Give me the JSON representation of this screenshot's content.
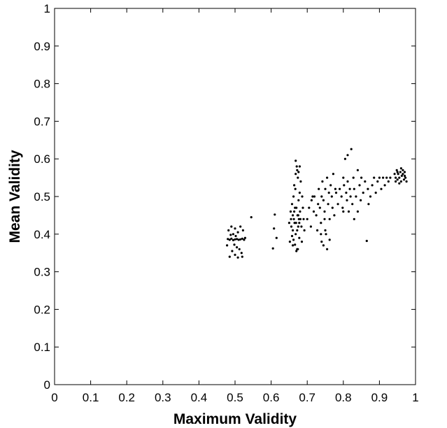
{
  "chart_data": {
    "type": "scatter",
    "xlabel": "Maximum Validity",
    "ylabel": "Mean Validity",
    "xlim": [
      0,
      1
    ],
    "ylim": [
      0,
      1
    ],
    "x_ticks": [
      "0",
      "0.1",
      "0.2",
      "0.3",
      "0.4",
      "0.5",
      "0.6",
      "0.7",
      "0.8",
      "0.9",
      "1"
    ],
    "y_ticks": [
      "0",
      "0.1",
      "0.2",
      "0.3",
      "0.4",
      "0.5",
      "0.6",
      "0.7",
      "0.8",
      "0.9",
      "1"
    ],
    "grid": false,
    "marker_color": "#000000",
    "series": [
      {
        "points": [
          [
            0.48,
            0.387
          ],
          [
            0.485,
            0.385
          ],
          [
            0.49,
            0.388
          ],
          [
            0.495,
            0.384
          ],
          [
            0.5,
            0.386
          ],
          [
            0.505,
            0.387
          ],
          [
            0.51,
            0.385
          ],
          [
            0.515,
            0.386
          ],
          [
            0.52,
            0.388
          ],
          [
            0.525,
            0.385
          ],
          [
            0.482,
            0.41
          ],
          [
            0.49,
            0.42
          ],
          [
            0.5,
            0.415
          ],
          [
            0.508,
            0.405
          ],
          [
            0.515,
            0.42
          ],
          [
            0.522,
            0.41
          ],
          [
            0.488,
            0.398
          ],
          [
            0.498,
            0.372
          ],
          [
            0.505,
            0.365
          ],
          [
            0.512,
            0.36
          ],
          [
            0.492,
            0.355
          ],
          [
            0.5,
            0.345
          ],
          [
            0.508,
            0.338
          ],
          [
            0.485,
            0.34
          ],
          [
            0.518,
            0.35
          ],
          [
            0.495,
            0.4
          ],
          [
            0.528,
            0.39
          ],
          [
            0.478,
            0.37
          ],
          [
            0.52,
            0.34
          ],
          [
            0.502,
            0.395
          ],
          [
            0.545,
            0.445
          ],
          [
            0.605,
            0.362
          ],
          [
            0.608,
            0.415
          ],
          [
            0.61,
            0.452
          ],
          [
            0.615,
            0.39
          ],
          [
            0.652,
            0.38
          ],
          [
            0.655,
            0.44
          ],
          [
            0.658,
            0.48
          ],
          [
            0.66,
            0.41
          ],
          [
            0.662,
            0.5
          ],
          [
            0.664,
            0.46
          ],
          [
            0.665,
            0.43
          ],
          [
            0.667,
            0.52
          ],
          [
            0.668,
            0.4
          ],
          [
            0.67,
            0.47
          ],
          [
            0.671,
            0.58
          ],
          [
            0.672,
            0.36
          ],
          [
            0.673,
            0.45
          ],
          [
            0.674,
            0.55
          ],
          [
            0.675,
            0.42
          ],
          [
            0.676,
            0.49
          ],
          [
            0.677,
            0.44
          ],
          [
            0.678,
            0.39
          ],
          [
            0.679,
            0.51
          ],
          [
            0.68,
            0.46
          ],
          [
            0.656,
            0.42
          ],
          [
            0.66,
            0.45
          ],
          [
            0.663,
            0.44
          ],
          [
            0.666,
            0.47
          ],
          [
            0.669,
            0.43
          ],
          [
            0.672,
            0.41
          ],
          [
            0.675,
            0.45
          ],
          [
            0.678,
            0.43
          ],
          [
            0.681,
            0.44
          ],
          [
            0.684,
            0.42
          ],
          [
            0.658,
            0.395
          ],
          [
            0.662,
            0.385
          ],
          [
            0.666,
            0.372
          ],
          [
            0.67,
            0.355
          ],
          [
            0.674,
            0.36
          ],
          [
            0.668,
            0.595
          ],
          [
            0.676,
            0.565
          ],
          [
            0.682,
            0.54
          ],
          [
            0.686,
            0.5
          ],
          [
            0.688,
            0.47
          ],
          [
            0.664,
            0.53
          ],
          [
            0.668,
            0.56
          ],
          [
            0.654,
            0.46
          ],
          [
            0.65,
            0.43
          ],
          [
            0.69,
            0.44
          ],
          [
            0.692,
            0.41
          ],
          [
            0.685,
            0.38
          ],
          [
            0.66,
            0.37
          ],
          [
            0.672,
            0.57
          ],
          [
            0.679,
            0.58
          ],
          [
            0.7,
            0.44
          ],
          [
            0.705,
            0.47
          ],
          [
            0.71,
            0.42
          ],
          [
            0.712,
            0.49
          ],
          [
            0.718,
            0.46
          ],
          [
            0.72,
            0.5
          ],
          [
            0.725,
            0.45
          ],
          [
            0.73,
            0.48
          ],
          [
            0.732,
            0.52
          ],
          [
            0.735,
            0.47
          ],
          [
            0.738,
            0.43
          ],
          [
            0.74,
            0.5
          ],
          [
            0.742,
            0.54
          ],
          [
            0.745,
            0.49
          ],
          [
            0.748,
            0.46
          ],
          [
            0.75,
            0.52
          ],
          [
            0.752,
            0.4
          ],
          [
            0.755,
            0.55
          ],
          [
            0.758,
            0.48
          ],
          [
            0.76,
            0.51
          ],
          [
            0.762,
            0.44
          ],
          [
            0.765,
            0.53
          ],
          [
            0.768,
            0.5
          ],
          [
            0.77,
            0.47
          ],
          [
            0.772,
            0.56
          ],
          [
            0.775,
            0.45
          ],
          [
            0.778,
            0.52
          ],
          [
            0.74,
            0.38
          ],
          [
            0.745,
            0.37
          ],
          [
            0.75,
            0.41
          ],
          [
            0.755,
            0.36
          ],
          [
            0.738,
            0.4
          ],
          [
            0.762,
            0.385
          ],
          [
            0.728,
            0.41
          ],
          [
            0.748,
            0.44
          ],
          [
            0.715,
            0.5
          ],
          [
            0.78,
            0.51
          ],
          [
            0.785,
            0.48
          ],
          [
            0.79,
            0.52
          ],
          [
            0.795,
            0.5
          ],
          [
            0.798,
            0.47
          ],
          [
            0.8,
            0.55
          ],
          [
            0.802,
            0.53
          ],
          [
            0.805,
            0.6
          ],
          [
            0.808,
            0.51
          ],
          [
            0.81,
            0.49
          ],
          [
            0.812,
            0.54
          ],
          [
            0.815,
            0.46
          ],
          [
            0.818,
            0.52
          ],
          [
            0.82,
            0.5
          ],
          [
            0.822,
            0.626
          ],
          [
            0.825,
            0.48
          ],
          [
            0.828,
            0.55
          ],
          [
            0.83,
            0.52
          ],
          [
            0.835,
            0.5
          ],
          [
            0.84,
            0.57
          ],
          [
            0.845,
            0.53
          ],
          [
            0.848,
            0.49
          ],
          [
            0.85,
            0.55
          ],
          [
            0.855,
            0.51
          ],
          [
            0.86,
            0.54
          ],
          [
            0.865,
            0.382
          ],
          [
            0.868,
            0.52
          ],
          [
            0.87,
            0.48
          ],
          [
            0.875,
            0.5
          ],
          [
            0.88,
            0.53
          ],
          [
            0.885,
            0.55
          ],
          [
            0.89,
            0.51
          ],
          [
            0.895,
            0.54
          ],
          [
            0.9,
            0.55
          ],
          [
            0.905,
            0.52
          ],
          [
            0.91,
            0.55
          ],
          [
            0.915,
            0.53
          ],
          [
            0.92,
            0.55
          ],
          [
            0.925,
            0.54
          ],
          [
            0.93,
            0.55
          ],
          [
            0.84,
            0.46
          ],
          [
            0.83,
            0.44
          ],
          [
            0.812,
            0.61
          ],
          [
            0.8,
            0.46
          ],
          [
            0.942,
            0.56
          ],
          [
            0.945,
            0.55
          ],
          [
            0.948,
            0.57
          ],
          [
            0.95,
            0.545
          ],
          [
            0.952,
            0.56
          ],
          [
            0.955,
            0.55
          ],
          [
            0.958,
            0.565
          ],
          [
            0.96,
            0.54
          ],
          [
            0.962,
            0.555
          ],
          [
            0.965,
            0.56
          ],
          [
            0.968,
            0.545
          ],
          [
            0.97,
            0.555
          ],
          [
            0.972,
            0.55
          ],
          [
            0.975,
            0.54
          ],
          [
            0.955,
            0.535
          ],
          [
            0.96,
            0.575
          ],
          [
            0.965,
            0.57
          ],
          [
            0.95,
            0.565
          ],
          [
            0.945,
            0.54
          ],
          [
            0.97,
            0.565
          ]
        ]
      }
    ]
  }
}
